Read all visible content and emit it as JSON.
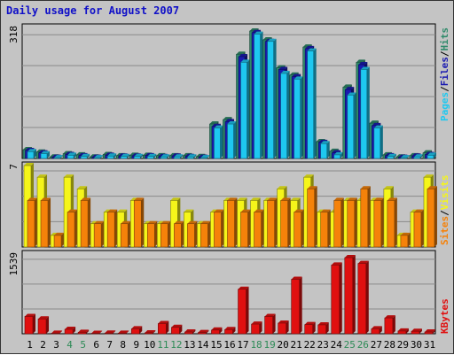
{
  "title": "Daily usage for August 2007",
  "colors": {
    "hits": "#2f8a6a",
    "files": "#1a1ab0",
    "pages": "#1ec8f0",
    "visits": "#f5f51a",
    "sites": "#f5820a",
    "kbytes": "#e01010",
    "weekend": "#2e8b57",
    "weekday": "#000000",
    "title": "#1010c8"
  },
  "legend": {
    "pages": "Pages",
    "files": "Files",
    "hits": "Hits",
    "sites": "Sites",
    "visits": "Visits",
    "kbytes": "KBytes",
    "sep": "/"
  },
  "chart_data": [
    {
      "type": "bar",
      "panel": "hits-files-pages",
      "y_max_label": "318",
      "ylim": [
        0,
        318
      ],
      "categories": [
        "1",
        "2",
        "3",
        "4",
        "5",
        "6",
        "7",
        "8",
        "9",
        "10",
        "11",
        "12",
        "13",
        "14",
        "15",
        "16",
        "17",
        "18",
        "19",
        "20",
        "21",
        "22",
        "23",
        "24",
        "25",
        "26",
        "27",
        "28",
        "29",
        "30",
        "31"
      ],
      "series": [
        {
          "name": "Hits",
          "values": [
            22,
            16,
            4,
            12,
            9,
            4,
            10,
            7,
            8,
            8,
            7,
            7,
            7,
            5,
            86,
            97,
            260,
            318,
            296,
            226,
            208,
            278,
            42,
            18,
            178,
            240,
            88,
            9,
            4,
            7,
            14
          ]
        },
        {
          "name": "Files",
          "values": [
            20,
            14,
            3,
            10,
            7,
            3,
            8,
            6,
            6,
            7,
            5,
            6,
            5,
            3,
            80,
            92,
            254,
            314,
            292,
            222,
            204,
            274,
            40,
            14,
            172,
            234,
            82,
            7,
            3,
            6,
            10
          ]
        },
        {
          "name": "Pages",
          "values": [
            17,
            12,
            2,
            8,
            5,
            2,
            6,
            5,
            5,
            5,
            4,
            4,
            4,
            2,
            76,
            86,
            240,
            310,
            292,
            212,
            198,
            268,
            37,
            9,
            158,
            222,
            76,
            5,
            2,
            4,
            8
          ]
        }
      ],
      "weekend_days": [
        "4",
        "5",
        "11",
        "12",
        "18",
        "19",
        "25",
        "26"
      ]
    },
    {
      "type": "bar",
      "panel": "visits-sites",
      "y_max_label": "7",
      "ylim": [
        0,
        7
      ],
      "categories": [
        "1",
        "2",
        "3",
        "4",
        "5",
        "6",
        "7",
        "8",
        "9",
        "10",
        "11",
        "12",
        "13",
        "14",
        "15",
        "16",
        "17",
        "18",
        "19",
        "20",
        "21",
        "22",
        "23",
        "24",
        "25",
        "26",
        "27",
        "28",
        "29",
        "30",
        "31"
      ],
      "series": [
        {
          "name": "Visits",
          "values": [
            7,
            6,
            1,
            6,
            5,
            2,
            3,
            3,
            4,
            2,
            2,
            4,
            3,
            2,
            3,
            4,
            4,
            4,
            4,
            5,
            4,
            6,
            3,
            3,
            4,
            4,
            4,
            5,
            1,
            3,
            6
          ]
        },
        {
          "name": "Sites",
          "values": [
            4,
            4,
            1,
            3,
            4,
            2,
            3,
            2,
            4,
            2,
            2,
            2,
            2,
            2,
            3,
            4,
            3,
            3,
            4,
            4,
            3,
            5,
            3,
            4,
            4,
            5,
            4,
            4,
            1,
            3,
            5
          ]
        }
      ]
    },
    {
      "type": "bar",
      "panel": "kbytes",
      "y_max_label": "1539",
      "ylim": [
        0,
        1539
      ],
      "categories": [
        "1",
        "2",
        "3",
        "4",
        "5",
        "6",
        "7",
        "8",
        "9",
        "10",
        "11",
        "12",
        "13",
        "14",
        "15",
        "16",
        "17",
        "18",
        "19",
        "20",
        "21",
        "22",
        "23",
        "24",
        "25",
        "26",
        "27",
        "28",
        "29",
        "30",
        "31"
      ],
      "series": [
        {
          "name": "KBytes",
          "values": [
            350,
            300,
            12,
            90,
            30,
            5,
            14,
            12,
            100,
            18,
            205,
            130,
            35,
            25,
            75,
            85,
            900,
            195,
            350,
            215,
            1100,
            185,
            180,
            1390,
            1539,
            1420,
            100,
            320,
            55,
            50,
            35
          ]
        }
      ]
    }
  ]
}
